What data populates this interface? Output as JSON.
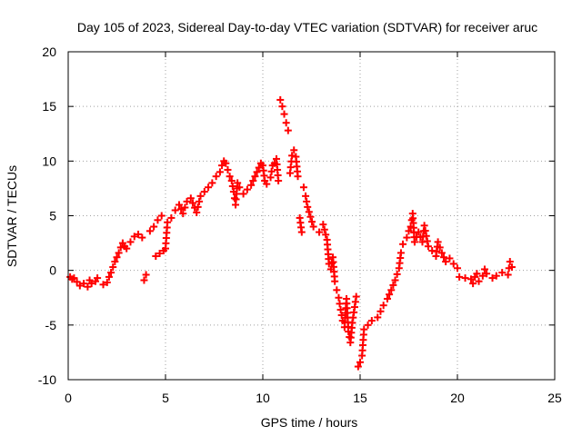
{
  "chart_data": {
    "type": "scatter",
    "title": "Day 105 of 2023, Sidereal Day-to-day VTEC variation (SDTVAR) for receiver aruc",
    "xlabel": "GPS time / hours",
    "ylabel": "SDTVAR / TECUs",
    "xlim": [
      0,
      25
    ],
    "ylim": [
      -10,
      20
    ],
    "xticks": [
      0,
      5,
      10,
      15,
      20,
      25
    ],
    "yticks": [
      -10,
      -5,
      0,
      5,
      10,
      15,
      20
    ],
    "grid": true,
    "marker": "plus",
    "color": "#ff0000",
    "series": [
      {
        "name": "SDTVAR",
        "points": [
          [
            0.1,
            -0.6
          ],
          [
            0.2,
            -0.8
          ],
          [
            0.3,
            -0.7
          ],
          [
            0.6,
            -1.4
          ],
          [
            0.8,
            -1.2
          ],
          [
            1.0,
            -1.5
          ],
          [
            1.1,
            -0.9
          ],
          [
            1.2,
            -1.2
          ],
          [
            1.4,
            -1.0
          ],
          [
            1.5,
            -0.7
          ],
          [
            1.8,
            -1.3
          ],
          [
            2.0,
            -1.1
          ],
          [
            2.1,
            -0.6
          ],
          [
            2.2,
            -0.2
          ],
          [
            2.3,
            0.3
          ],
          [
            2.4,
            0.8
          ],
          [
            2.5,
            1.2
          ],
          [
            2.6,
            1.6
          ],
          [
            2.7,
            2.1
          ],
          [
            2.8,
            2.5
          ],
          [
            2.9,
            2.2
          ],
          [
            3.0,
            2.0
          ],
          [
            3.2,
            2.6
          ],
          [
            3.4,
            3.1
          ],
          [
            3.6,
            3.3
          ],
          [
            3.8,
            3.0
          ],
          [
            3.9,
            -0.9
          ],
          [
            4.0,
            -0.4
          ],
          [
            4.2,
            3.6
          ],
          [
            4.4,
            4.0
          ],
          [
            4.6,
            4.6
          ],
          [
            4.8,
            5.0
          ],
          [
            4.5,
            1.3
          ],
          [
            4.9,
            1.8
          ],
          [
            5.0,
            2.0
          ],
          [
            5.1,
            4.4
          ],
          [
            5.3,
            4.8
          ],
          [
            5.5,
            5.5
          ],
          [
            5.7,
            6.0
          ],
          [
            5.9,
            5.2
          ],
          [
            6.1,
            6.3
          ],
          [
            6.3,
            6.6
          ],
          [
            6.6,
            5.3
          ],
          [
            6.8,
            6.8
          ],
          [
            7.0,
            7.2
          ],
          [
            7.2,
            7.6
          ],
          [
            7.4,
            8.0
          ],
          [
            7.6,
            8.6
          ],
          [
            7.8,
            9.0
          ],
          [
            7.9,
            9.6
          ],
          [
            8.0,
            10.0
          ],
          [
            8.1,
            9.8
          ],
          [
            8.2,
            9.2
          ],
          [
            8.3,
            8.6
          ],
          [
            8.4,
            8.2
          ],
          [
            8.5,
            7.2
          ],
          [
            8.6,
            6.0
          ],
          [
            8.7,
            8.0
          ],
          [
            8.8,
            7.6
          ],
          [
            9.0,
            7.0
          ],
          [
            9.2,
            7.4
          ],
          [
            9.4,
            7.8
          ],
          [
            9.6,
            8.6
          ],
          [
            9.8,
            9.4
          ],
          [
            9.9,
            9.8
          ],
          [
            10.0,
            9.6
          ],
          [
            10.1,
            8.2
          ],
          [
            10.2,
            7.9
          ],
          [
            10.4,
            8.5
          ],
          [
            10.5,
            9.6
          ],
          [
            10.6,
            9.8
          ],
          [
            10.7,
            10.2
          ],
          [
            10.8,
            8.2
          ],
          [
            10.9,
            15.6
          ],
          [
            11.0,
            15.0
          ],
          [
            11.1,
            14.3
          ],
          [
            11.2,
            13.5
          ],
          [
            11.3,
            12.8
          ],
          [
            11.4,
            8.9
          ],
          [
            11.5,
            10.5
          ],
          [
            11.6,
            11.0
          ],
          [
            11.7,
            10.4
          ],
          [
            11.8,
            8.6
          ],
          [
            11.9,
            4.8
          ],
          [
            12.0,
            3.5
          ],
          [
            12.1,
            7.6
          ],
          [
            12.2,
            6.8
          ],
          [
            12.3,
            5.8
          ],
          [
            12.6,
            4.0
          ],
          [
            12.9,
            3.5
          ],
          [
            13.1,
            4.2
          ],
          [
            13.3,
            2.8
          ],
          [
            13.4,
            0.6
          ],
          [
            13.5,
            0.1
          ],
          [
            13.6,
            1.2
          ],
          [
            13.7,
            -1.0
          ],
          [
            13.8,
            -1.8
          ],
          [
            13.9,
            -2.5
          ],
          [
            14.0,
            -3.6
          ],
          [
            14.1,
            -4.6
          ],
          [
            14.2,
            -5.2
          ],
          [
            14.3,
            -2.6
          ],
          [
            14.4,
            -5.6
          ],
          [
            14.5,
            -6.6
          ],
          [
            14.6,
            -4.8
          ],
          [
            14.8,
            -2.4
          ],
          [
            14.9,
            -8.8
          ],
          [
            15.0,
            -8.4
          ],
          [
            15.1,
            -7.8
          ],
          [
            15.2,
            -5.4
          ],
          [
            15.4,
            -5.0
          ],
          [
            15.6,
            -4.6
          ],
          [
            15.9,
            -4.3
          ],
          [
            16.2,
            -3.2
          ],
          [
            16.4,
            -2.6
          ],
          [
            16.6,
            -1.8
          ],
          [
            16.8,
            -0.9
          ],
          [
            17.0,
            0.2
          ],
          [
            17.1,
            1.6
          ],
          [
            17.2,
            2.4
          ],
          [
            17.4,
            3.0
          ],
          [
            17.5,
            3.6
          ],
          [
            17.6,
            4.0
          ],
          [
            17.7,
            5.2
          ],
          [
            17.8,
            2.6
          ],
          [
            18.0,
            3.5
          ],
          [
            18.2,
            2.6
          ],
          [
            18.3,
            4.1
          ],
          [
            18.5,
            2.2
          ],
          [
            18.7,
            1.8
          ],
          [
            18.9,
            1.3
          ],
          [
            19.0,
            2.6
          ],
          [
            19.2,
            1.6
          ],
          [
            19.4,
            0.8
          ],
          [
            19.6,
            1.1
          ],
          [
            19.8,
            0.6
          ],
          [
            20.0,
            0.2
          ],
          [
            20.1,
            -0.6
          ],
          [
            20.7,
            -0.8
          ],
          [
            20.8,
            -1.2
          ],
          [
            20.9,
            -0.6
          ],
          [
            21.0,
            -0.3
          ],
          [
            21.1,
            -1.0
          ],
          [
            21.3,
            -0.5
          ],
          [
            21.4,
            0.1
          ],
          [
            21.5,
            -0.3
          ],
          [
            21.8,
            -0.7
          ],
          [
            22.0,
            -0.5
          ],
          [
            22.3,
            -0.2
          ],
          [
            22.6,
            -0.4
          ],
          [
            22.7,
            0.8
          ],
          [
            22.8,
            0.3
          ]
        ]
      }
    ]
  }
}
